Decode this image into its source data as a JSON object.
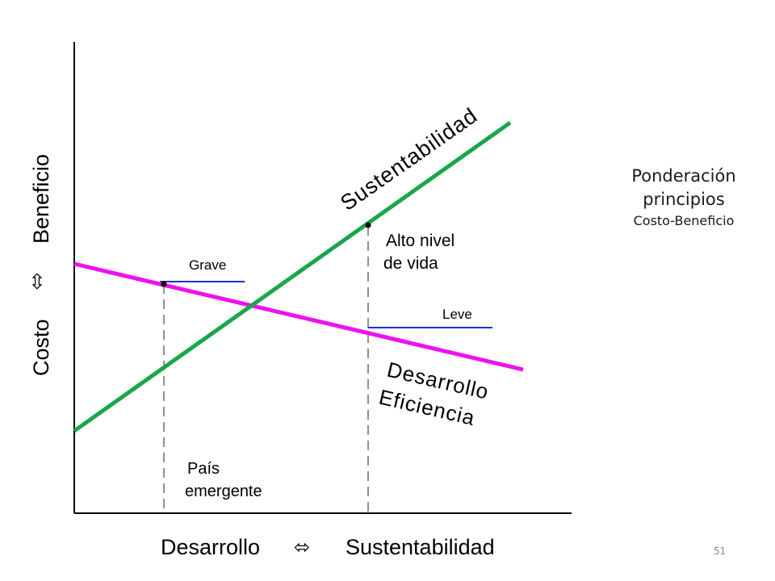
{
  "diagram": {
    "y_axis_label": {
      "costo": "Costo",
      "arrow": "⇳",
      "beneficio": "Beneficio"
    },
    "x_axis_label": {
      "desarrollo": "Desarrollo",
      "arrow": "⬄",
      "sustentabilidad": "Sustentabilidad"
    },
    "lines": {
      "sustentabilidad": {
        "label": "Sustentabilidad",
        "color": "#1aa64a"
      },
      "desarrollo": {
        "label_line1": "Desarrollo",
        "label_line2": "Eficiencia",
        "color": "#ee11ee"
      }
    },
    "markers": {
      "grave": {
        "label": "Grave",
        "color": "#1f2fd0"
      },
      "leve": {
        "label": "Leve",
        "color": "#1f2fd0"
      }
    },
    "annotations": {
      "alto_nivel_line1": "Alto nivel",
      "alto_nivel_line2": "de vida",
      "pais_line1": "País",
      "pais_line2": "emergente"
    }
  },
  "side_title": {
    "line1": "Ponderación",
    "line2": "principios",
    "line3": "Costo-Beneficio"
  },
  "slide_number": "51"
}
